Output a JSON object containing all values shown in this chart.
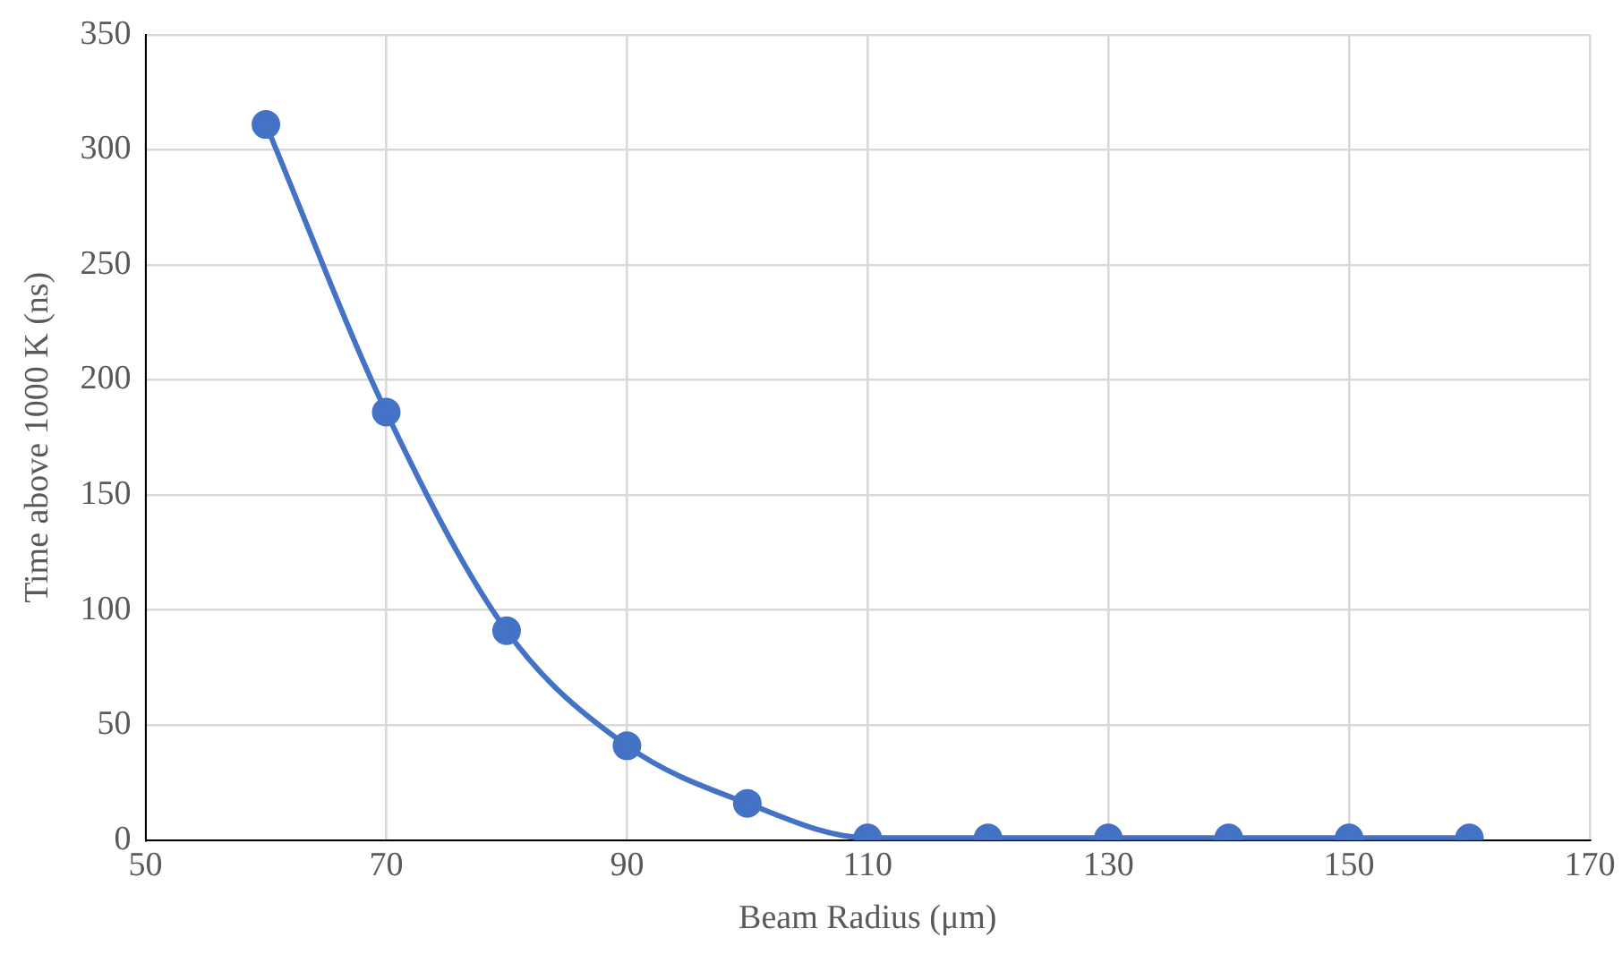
{
  "chart_data": {
    "type": "line",
    "xlabel": "Beam Radius (μm)",
    "ylabel": "Time above 1000 K (ns)",
    "x": [
      60,
      70,
      80,
      90,
      100,
      110,
      120,
      130,
      140,
      150,
      160
    ],
    "series": [
      {
        "color": "#4472c4",
        "values": [
          311,
          186,
          91,
          41,
          16,
          1,
          1,
          1,
          1,
          1,
          1
        ]
      }
    ],
    "xlim": [
      50,
      170
    ],
    "xticks": [
      50,
      70,
      90,
      110,
      130,
      150,
      170
    ],
    "ylim": [
      0,
      350
    ],
    "yticks": [
      0,
      50,
      100,
      150,
      200,
      250,
      300,
      350
    ],
    "grid": true,
    "legend": false,
    "marker": "circle",
    "line_style": "solid"
  }
}
